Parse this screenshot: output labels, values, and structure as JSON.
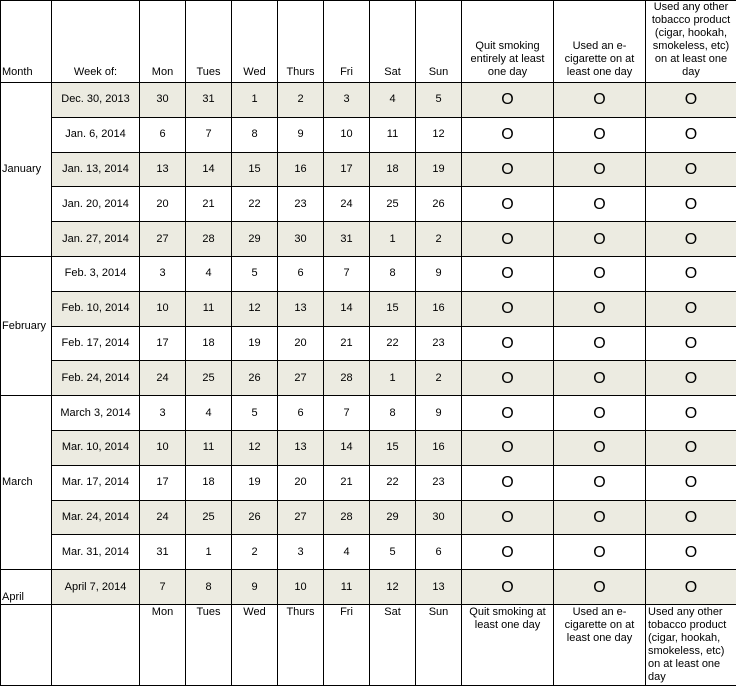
{
  "header": {
    "month": "Month",
    "week_of": "Week of:",
    "days": [
      "Mon",
      "Tues",
      "Wed",
      "Thurs",
      "Fri",
      "Sat",
      "Sun"
    ],
    "quit": "Quit smoking entirely at least one day",
    "ecig": "Used an e-cigarette on at least one day",
    "other": "Used any other tobacco product (cigar, hookah, smokeless, etc) on at least one day"
  },
  "circle_glyph": "O",
  "shade_color": "#ecebe1",
  "months": [
    {
      "name": "January",
      "weeks": [
        {
          "week": "Dec. 30, 2013",
          "days": [
            "30",
            "31",
            "1",
            "2",
            "3",
            "4",
            "5"
          ],
          "shaded": true
        },
        {
          "week": "Jan. 6, 2014",
          "days": [
            "6",
            "7",
            "8",
            "9",
            "10",
            "11",
            "12"
          ],
          "shaded": false
        },
        {
          "week": "Jan. 13, 2014",
          "days": [
            "13",
            "14",
            "15",
            "16",
            "17",
            "18",
            "19"
          ],
          "shaded": true
        },
        {
          "week": "Jan. 20, 2014",
          "days": [
            "20",
            "21",
            "22",
            "23",
            "24",
            "25",
            "26"
          ],
          "shaded": false
        },
        {
          "week": "Jan. 27, 2014",
          "days": [
            "27",
            "28",
            "29",
            "30",
            "31",
            "1",
            "2"
          ],
          "shaded": true
        }
      ]
    },
    {
      "name": "February",
      "weeks": [
        {
          "week": "Feb. 3, 2014",
          "days": [
            "3",
            "4",
            "5",
            "6",
            "7",
            "8",
            "9"
          ],
          "shaded": false
        },
        {
          "week": "Feb. 10, 2014",
          "days": [
            "10",
            "11",
            "12",
            "13",
            "14",
            "15",
            "16"
          ],
          "shaded": true
        },
        {
          "week": "Feb. 17, 2014",
          "days": [
            "17",
            "18",
            "19",
            "20",
            "21",
            "22",
            "23"
          ],
          "shaded": false
        },
        {
          "week": "Feb. 24, 2014",
          "days": [
            "24",
            "25",
            "26",
            "27",
            "28",
            "1",
            "2"
          ],
          "shaded": true
        }
      ]
    },
    {
      "name": "March",
      "weeks": [
        {
          "week": "March 3, 2014",
          "days": [
            "3",
            "4",
            "5",
            "6",
            "7",
            "8",
            "9"
          ],
          "shaded": false
        },
        {
          "week": "Mar. 10, 2014",
          "days": [
            "10",
            "11",
            "12",
            "13",
            "14",
            "15",
            "16"
          ],
          "shaded": true
        },
        {
          "week": "Mar. 17, 2014",
          "days": [
            "17",
            "18",
            "19",
            "20",
            "21",
            "22",
            "23"
          ],
          "shaded": false
        },
        {
          "week": "Mar. 24, 2014",
          "days": [
            "24",
            "25",
            "26",
            "27",
            "28",
            "29",
            "30"
          ],
          "shaded": true
        },
        {
          "week": "Mar. 31, 2014",
          "days": [
            "31",
            "1",
            "2",
            "3",
            "4",
            "5",
            "6"
          ],
          "shaded": false
        }
      ]
    },
    {
      "name": "April",
      "weeks": [
        {
          "week": "April 7, 2014",
          "days": [
            "7",
            "8",
            "9",
            "10",
            "11",
            "12",
            "13"
          ],
          "shaded": true
        }
      ]
    }
  ],
  "footer": {
    "days": [
      "Mon",
      "Tues",
      "Wed",
      "Thurs",
      "Fri",
      "Sat",
      "Sun"
    ],
    "quit": "Quit smoking at least one day",
    "ecig": "Used an e-cigarette on at least one day",
    "other": "Used any other tobacco product (cigar, hookah, smokeless, etc) on at least one day"
  }
}
